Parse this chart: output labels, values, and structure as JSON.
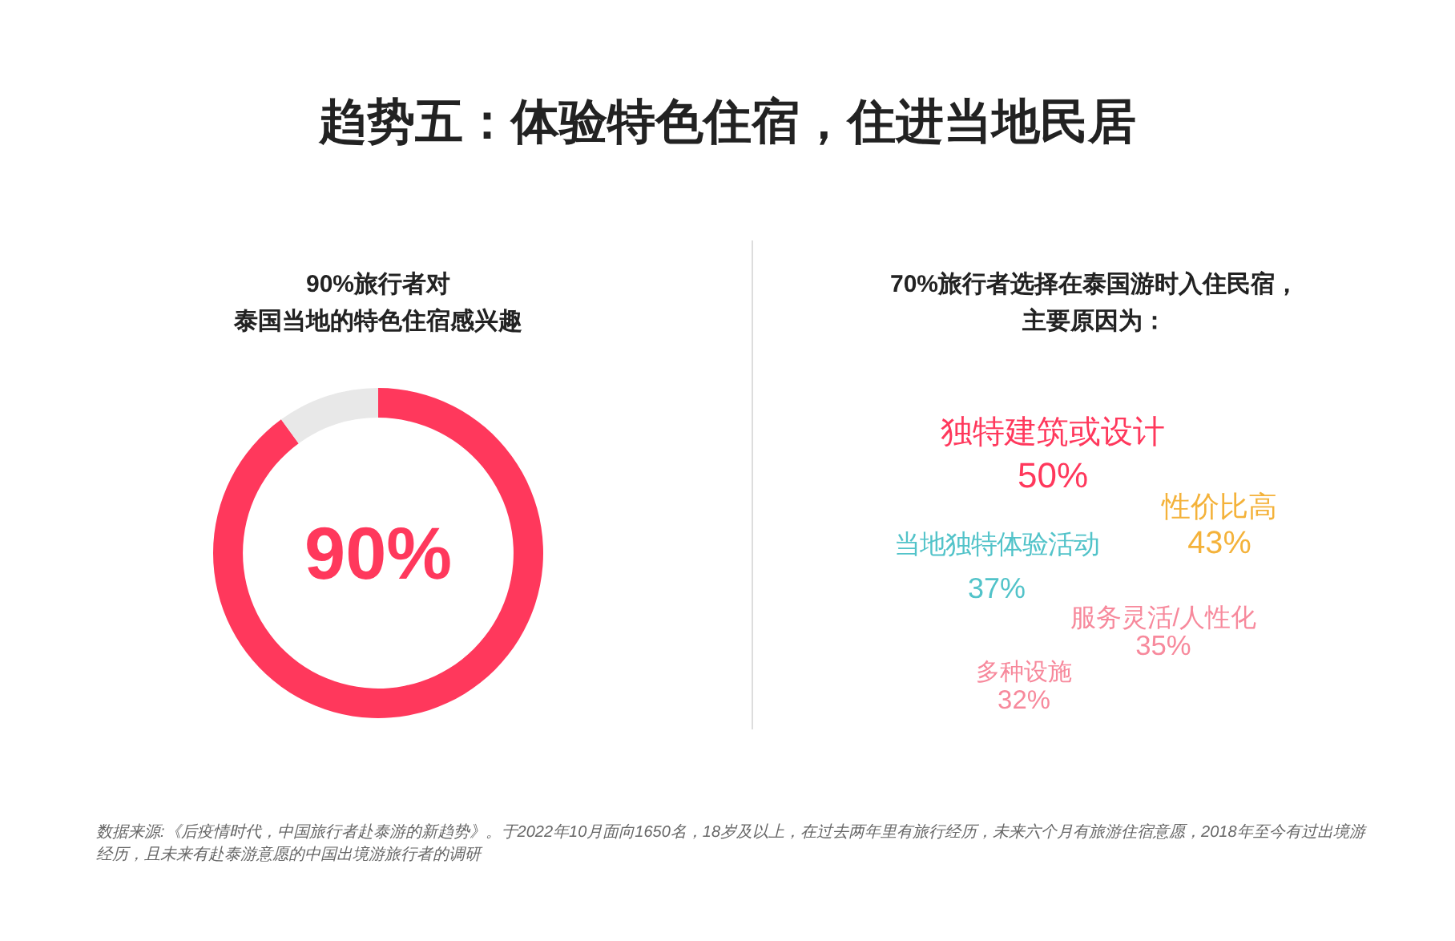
{
  "chart_data": [
    {
      "type": "donut",
      "title": "趋势五：体验特色住宿，住进当地民居",
      "subtitle": "90%旅行者对泰国当地的特色住宿感兴趣",
      "categories": [
        null,
        null
      ],
      "values": [
        90,
        10
      ],
      "colors": [
        "#ff385c",
        "#e8e8e8"
      ],
      "annotations": [
        "90%"
      ]
    },
    {
      "type": "other",
      "title": "70%旅行者选择在泰国游时入住民宿，主要原因为：",
      "categories": [
        "独特建筑或设计",
        "性价比高",
        "当地独特体验活动",
        "服务灵活/人性化",
        "多种设施"
      ],
      "values": [
        50,
        43,
        37,
        35,
        32
      ],
      "value_labels": [
        "50%",
        "43%",
        "37%",
        "35%",
        "32%"
      ],
      "colors": [
        "#ff385c",
        "#f4b23a",
        "#52c3c9",
        "#f7899c",
        "#f7899c"
      ],
      "annotations": [
        "数据来源:《后疫情时代，中国旅行者赴泰游的新趋势》。于2022年10月面向1650名，18岁及以上，在过去两年里有旅行经历，未来六个月有旅游住宿意愿，2018年至今有过出境游经历，且未来有赴泰游意愿的中国出境游旅行者的调研"
      ]
    }
  ]
}
